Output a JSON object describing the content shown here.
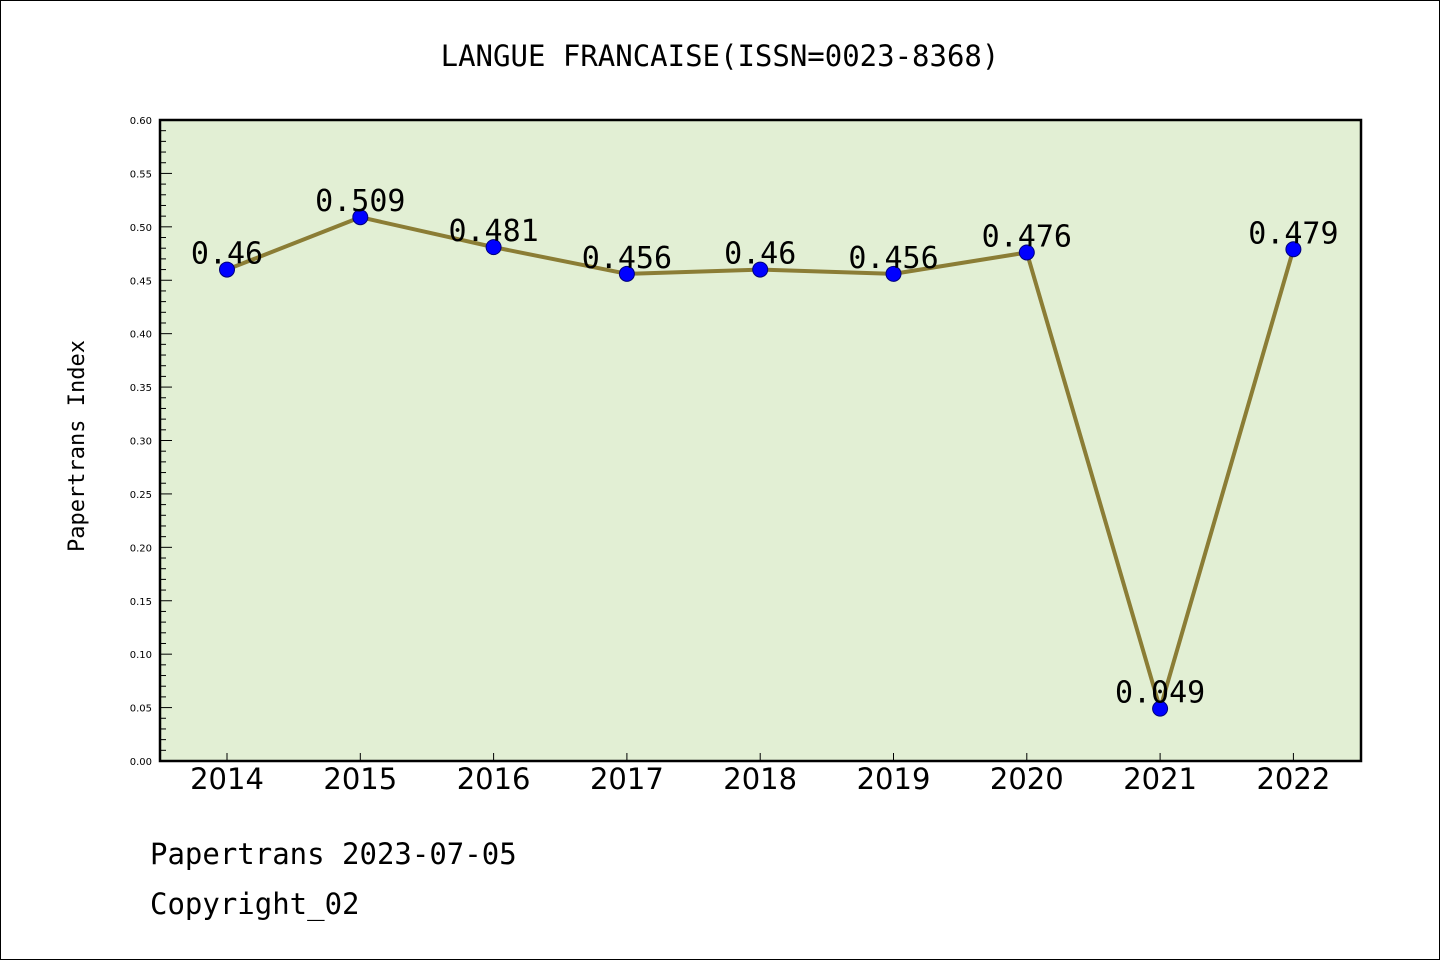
{
  "chart_data": {
    "type": "line",
    "title": "LANGUE FRANCAISE(ISSN=0023-8368)",
    "xlabel": "",
    "ylabel": "Papertrans Index",
    "x": [
      "2014",
      "2015",
      "2016",
      "2017",
      "2018",
      "2019",
      "2020",
      "2021",
      "2022"
    ],
    "values": [
      0.46,
      0.509,
      0.481,
      0.456,
      0.46,
      0.456,
      0.476,
      0.049,
      0.479
    ],
    "data_labels": [
      "0.46",
      "0.509",
      "0.481",
      "0.456",
      "0.46",
      "0.456",
      "0.476",
      "0.049",
      "0.479"
    ],
    "ylim": [
      0.0,
      0.6
    ],
    "yticks": [
      "0.00",
      "0.05",
      "0.10",
      "0.15",
      "0.20",
      "0.25",
      "0.30",
      "0.35",
      "0.40",
      "0.45",
      "0.50",
      "0.55",
      "0.60"
    ],
    "grid": false,
    "legend": "none",
    "colors": {
      "plot_background": "#e2efd4",
      "line": "#8b7d35",
      "marker": "#0000ff"
    }
  },
  "footer": {
    "line1": "Papertrans 2023-07-05",
    "line2": "Copyright_02"
  }
}
